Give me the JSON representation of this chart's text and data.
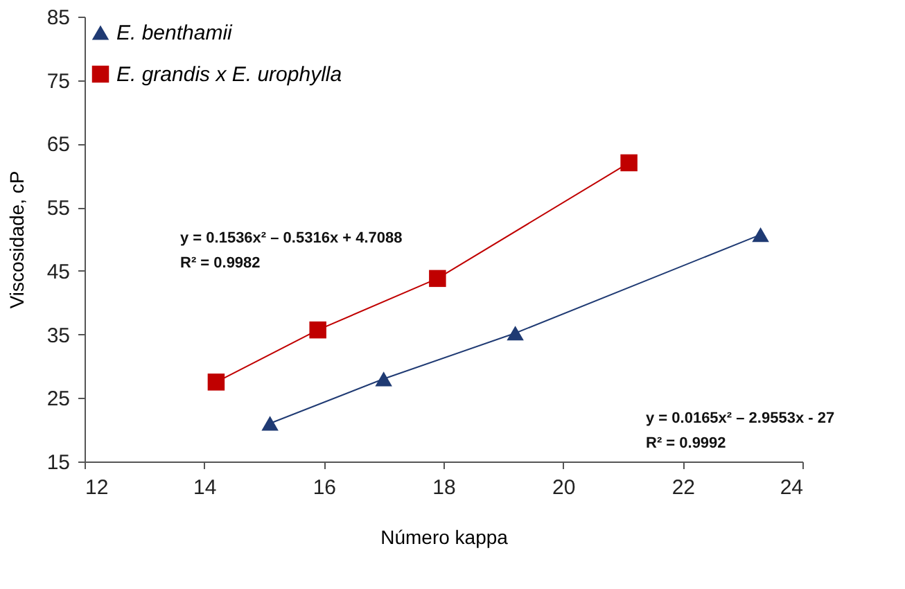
{
  "chart_data": {
    "type": "line",
    "xlabel": "Número kappa",
    "ylabel": "Viscosidade, cP",
    "xlim": [
      12,
      24
    ],
    "xticks": [
      12,
      14,
      16,
      18,
      20,
      22,
      24
    ],
    "ylim": [
      15,
      85
    ],
    "yticks": [
      15,
      25,
      35,
      45,
      55,
      65,
      75,
      85
    ],
    "grid": false,
    "legend": "top left",
    "series": [
      {
        "name": "E. benthamii",
        "color": "#1f3a73",
        "marker": "triangle",
        "x": [
          15.1,
          17.0,
          19.2,
          23.3
        ],
        "values": [
          21,
          28,
          35.2,
          50.7
        ]
      },
      {
        "name": "E. grandis x E. urophylla",
        "color": "#c00000",
        "marker": "square",
        "x": [
          14.2,
          15.9,
          17.9,
          21.1
        ],
        "values": [
          27.5,
          35.7,
          43.8,
          62
        ]
      }
    ],
    "annotations": [
      "y = 0.1536x² – 0.5316x + 4.7088",
      "R² = 0.9982",
      "y = 0.0165x² – 2.9553x - 27",
      "R² = 0.9992"
    ]
  }
}
